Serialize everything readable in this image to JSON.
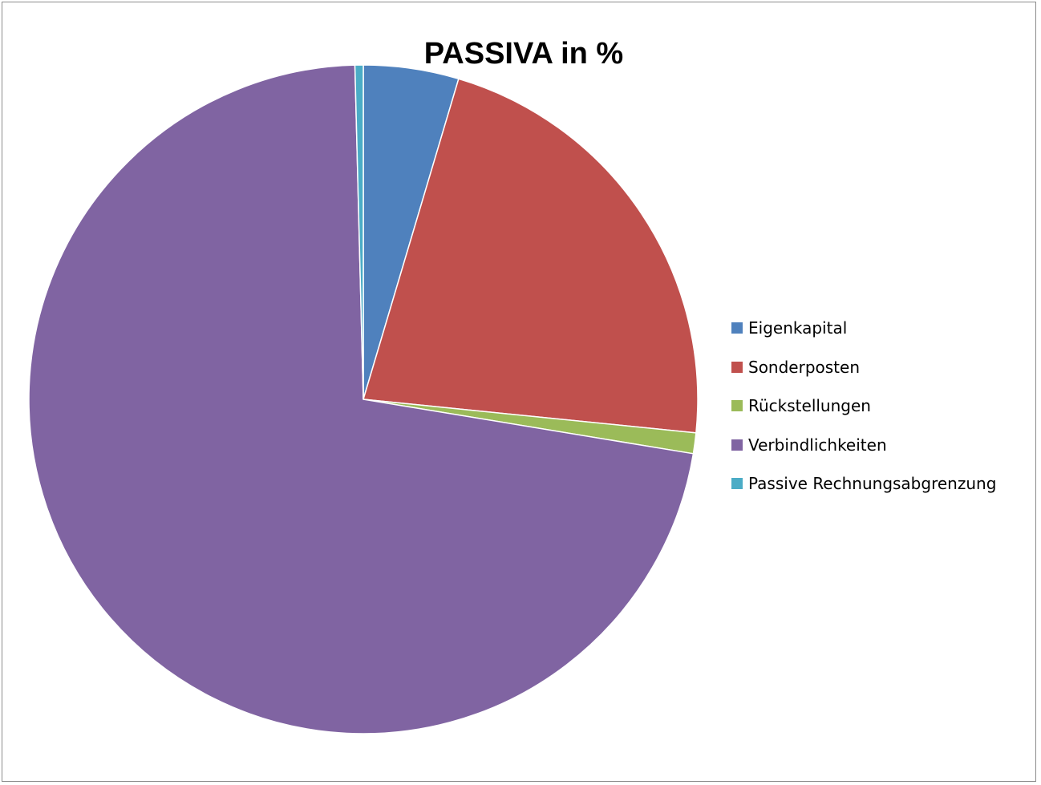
{
  "chart_data": {
    "type": "pie",
    "title": "PASSIVA in %",
    "categories": [
      "Eigenkapital",
      "Sonderposten",
      "Rückstellungen",
      "Verbindlichkeiten",
      "Passive Rechnungsabgrenzung"
    ],
    "values": [
      4.6,
      22.0,
      1.0,
      72.0,
      0.4
    ],
    "unit": "%",
    "colors": [
      "#4f81bd",
      "#c0504d",
      "#9bbb59",
      "#8064a2",
      "#4bacc6"
    ],
    "start_angle": "12 o'clock, clockwise",
    "legend_position": "right"
  }
}
